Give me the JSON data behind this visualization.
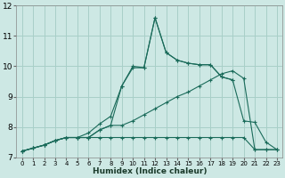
{
  "xlabel": "Humidex (Indice chaleur)",
  "bg_color": "#cde8e4",
  "grid_color": "#a8cfc8",
  "line_color": "#1a6b5a",
  "xlim": [
    -0.5,
    23.5
  ],
  "ylim": [
    7,
    12
  ],
  "xticks": [
    0,
    1,
    2,
    3,
    4,
    5,
    6,
    7,
    8,
    9,
    10,
    11,
    12,
    13,
    14,
    15,
    16,
    17,
    18,
    19,
    20,
    21,
    22,
    23
  ],
  "yticks": [
    7,
    8,
    9,
    10,
    11,
    12
  ],
  "series": [
    [
      7.2,
      7.3,
      7.4,
      7.55,
      7.65,
      7.65,
      7.65,
      7.9,
      8.05,
      9.35,
      9.95,
      9.95,
      11.6,
      10.45,
      10.2,
      10.1,
      10.05,
      10.05,
      9.65,
      9.55,
      8.2,
      8.15,
      7.5,
      7.25
    ],
    [
      7.2,
      7.3,
      7.4,
      7.55,
      7.65,
      7.65,
      7.65,
      7.9,
      8.05,
      8.05,
      8.2,
      8.4,
      8.6,
      8.8,
      9.0,
      9.15,
      9.35,
      9.55,
      9.75,
      9.85,
      9.6,
      7.25,
      7.25,
      7.25
    ],
    [
      7.2,
      7.3,
      7.4,
      7.55,
      7.65,
      7.65,
      7.65,
      7.65,
      7.65,
      7.65,
      7.65,
      7.65,
      7.65,
      7.65,
      7.65,
      7.65,
      7.65,
      7.65,
      7.65,
      7.65,
      7.65,
      7.25,
      7.25,
      7.25
    ],
    [
      7.2,
      7.3,
      7.4,
      7.55,
      7.65,
      7.65,
      7.8,
      8.1,
      8.35,
      9.35,
      10.0,
      9.95,
      11.6,
      10.45,
      10.2,
      10.1,
      10.05,
      10.05,
      9.65,
      9.55,
      null,
      null,
      null,
      null
    ]
  ]
}
